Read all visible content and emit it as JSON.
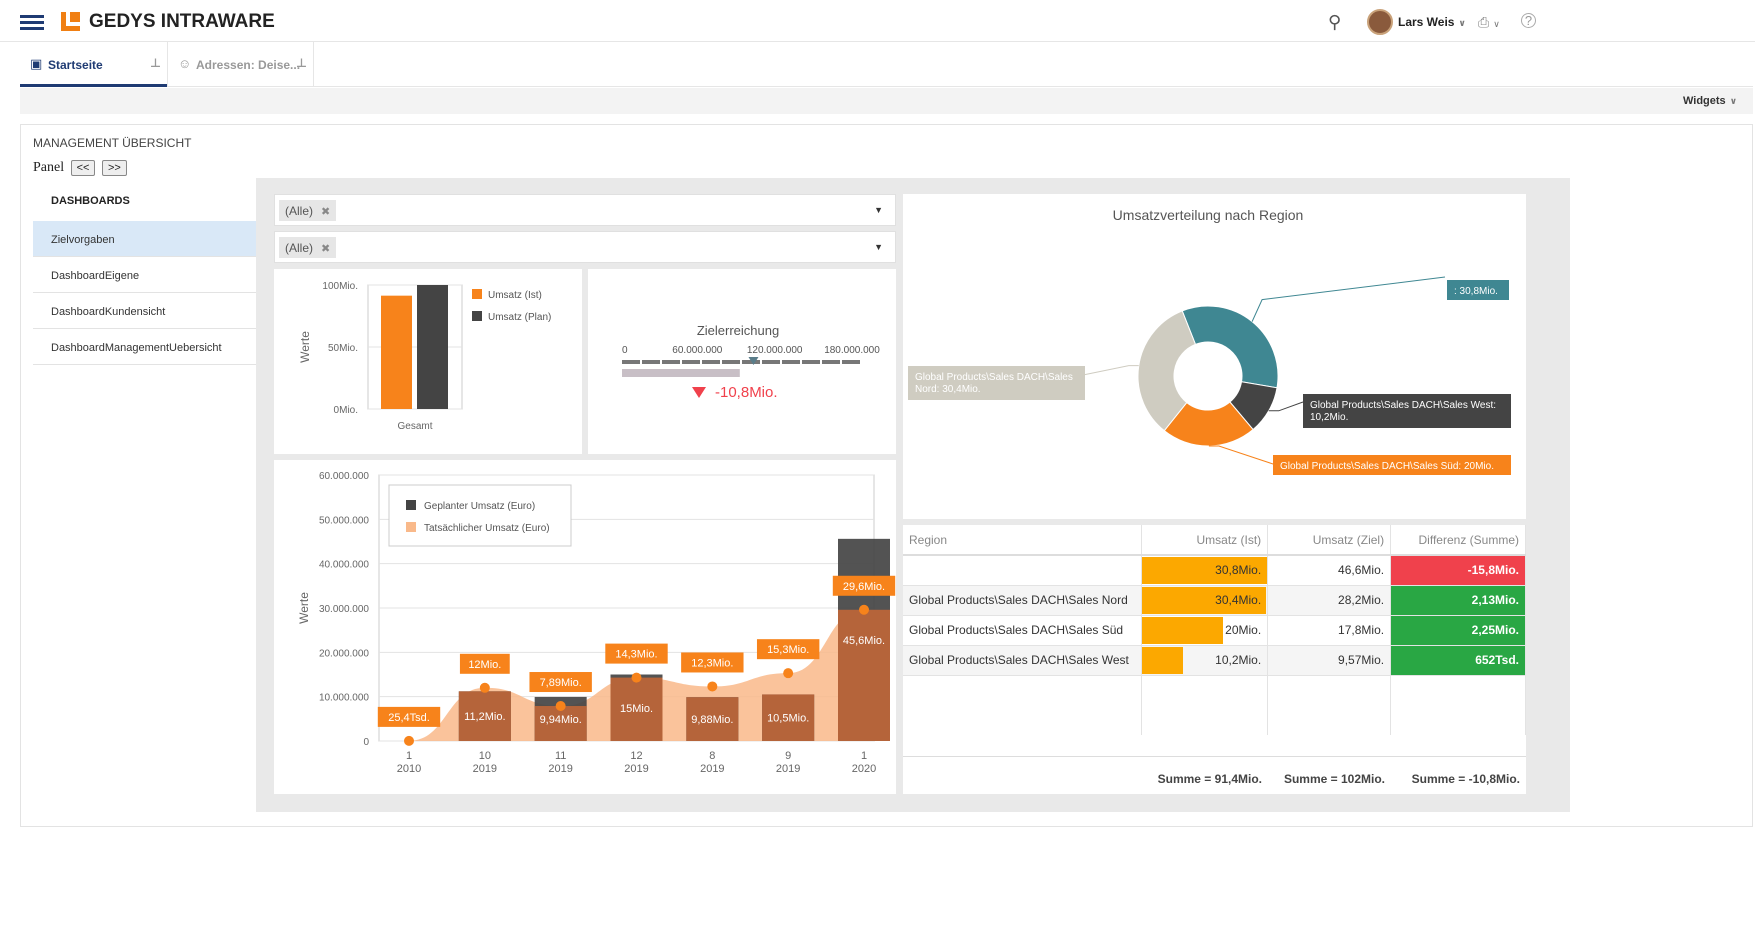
{
  "app": {
    "brand": "GEDYS INTRAWARE",
    "user": "Lars Weis"
  },
  "icons": {
    "menu": "hamburger-icon",
    "search": "search-icon",
    "print": "printer-icon",
    "help": "help-icon",
    "pin": "pin-icon",
    "home": "home-icon",
    "person": "person-icon"
  },
  "tabs": [
    {
      "label": "Startseite"
    },
    {
      "label": "Adressen: Deise..."
    }
  ],
  "widgets_label": "Widgets",
  "page": {
    "title": "MANAGEMENT ÜBERSICHT",
    "panel_label": "Panel",
    "prev": "<<",
    "next": ">>"
  },
  "nav": {
    "header": "DASHBOARDS",
    "items": [
      "Zielvorgaben",
      "DashboardEigene",
      "DashboardKundensicht",
      "DashboardManagementUebersicht"
    ]
  },
  "filters": [
    {
      "value": "(Alle)"
    },
    {
      "value": "(Alle)"
    }
  ],
  "colors": {
    "accent": "#f07f13",
    "dark": "#444444",
    "teal": "#3f8792",
    "grey": "#cfccc1",
    "positive": "#29a744",
    "negative": "#f0414c",
    "bar": "#fca800"
  },
  "chart_data": [
    {
      "type": "bar",
      "categories": [
        "Gesamt"
      ],
      "ylabel": "Werte",
      "yticks": [
        "0Mio.",
        "50Mio.",
        "100Mio."
      ],
      "ylim": [
        0,
        100
      ],
      "series": [
        {
          "name": "Umsatz (Ist)",
          "values": [
            91.4
          ],
          "color": "#f7831b"
        },
        {
          "name": "Umsatz (Plan)",
          "values": [
            102
          ],
          "color": "#444444"
        }
      ]
    },
    {
      "type": "gauge",
      "title": "Zielerreichung",
      "ticks": [
        "0",
        "60.000.000",
        "120.000.000",
        "180.000.000"
      ],
      "range": [
        0,
        180000000
      ],
      "actual": 91400000,
      "target": 102000000,
      "delta_label": "-10,8Mio."
    },
    {
      "type": "bar",
      "xlabels": [
        [
          "1",
          "2010"
        ],
        [
          "10",
          "2019"
        ],
        [
          "11",
          "2019"
        ],
        [
          "12",
          "2019"
        ],
        [
          "8",
          "2019"
        ],
        [
          "9",
          "2019"
        ],
        [
          "1",
          "2020"
        ]
      ],
      "ylabel": "Werte",
      "yticks": [
        "0",
        "10.000.000",
        "20.000.000",
        "30.000.000",
        "40.000.000",
        "50.000.000",
        "60.000.000"
      ],
      "ylim": [
        0,
        60000000
      ],
      "series": [
        {
          "name": "Geplanter Umsatz (Euro)",
          "values": [
            0,
            11200000,
            9940000,
            15000000,
            9880000,
            10500000,
            45600000
          ],
          "labels": [
            "",
            "11,2Mio.",
            "9,94Mio.",
            "15Mio.",
            "9,88Mio.",
            "10,5Mio.",
            "45,6Mio."
          ]
        },
        {
          "name": "Tatsächlicher Umsatz (Euro)",
          "values": [
            25400,
            12000000,
            7890000,
            14300000,
            12300000,
            15300000,
            29600000
          ],
          "labels": [
            "25,4Tsd.",
            "12Mio.",
            "7,89Mio.",
            "14,3Mio.",
            "12,3Mio.",
            "15,3Mio.",
            "29,6Mio."
          ]
        }
      ],
      "legend": "top-left"
    },
    {
      "type": "pie",
      "title": "Umsatzverteilung nach Region",
      "slices": [
        {
          "label": ": 30,8Mio.",
          "value": 30.8,
          "color": "#3f8792"
        },
        {
          "label": "Global Products\\Sales DACH\\Sales West: 10,2Mio.",
          "value": 10.2,
          "color": "#444444"
        },
        {
          "label": "Global Products\\Sales DACH\\Sales Süd: 20Mio.",
          "value": 20,
          "color": "#f7831b"
        },
        {
          "label": "Global Products\\Sales DACH\\Sales Nord: 30,4Mio.",
          "value": 30.4,
          "color": "#cfccc1"
        }
      ]
    }
  ],
  "table": {
    "headers": [
      "Region",
      "Umsatz (Ist)",
      "Umsatz (Ziel)",
      "Differenz (Summe)"
    ],
    "rows": [
      {
        "region": "",
        "ist": "30,8Mio.",
        "ist_frac": 1.0,
        "ziel": "46,6Mio.",
        "diff": "-15,8Mio.",
        "pos": false
      },
      {
        "region": "Global Products\\Sales DACH\\Sales Nord",
        "ist": "30,4Mio.",
        "ist_frac": 0.99,
        "ziel": "28,2Mio.",
        "diff": "2,13Mio.",
        "pos": true
      },
      {
        "region": "Global Products\\Sales DACH\\Sales Süd",
        "ist": "20Mio.",
        "ist_frac": 0.65,
        "ziel": "17,8Mio.",
        "diff": "2,25Mio.",
        "pos": true
      },
      {
        "region": "Global Products\\Sales DACH\\Sales West",
        "ist": "10,2Mio.",
        "ist_frac": 0.33,
        "ziel": "9,57Mio.",
        "diff": "652Tsd.",
        "pos": true
      }
    ],
    "totals": [
      "",
      "Summe = 91,4Mio.",
      "Summe = 102Mio.",
      "Summe = -10,8Mio."
    ]
  }
}
